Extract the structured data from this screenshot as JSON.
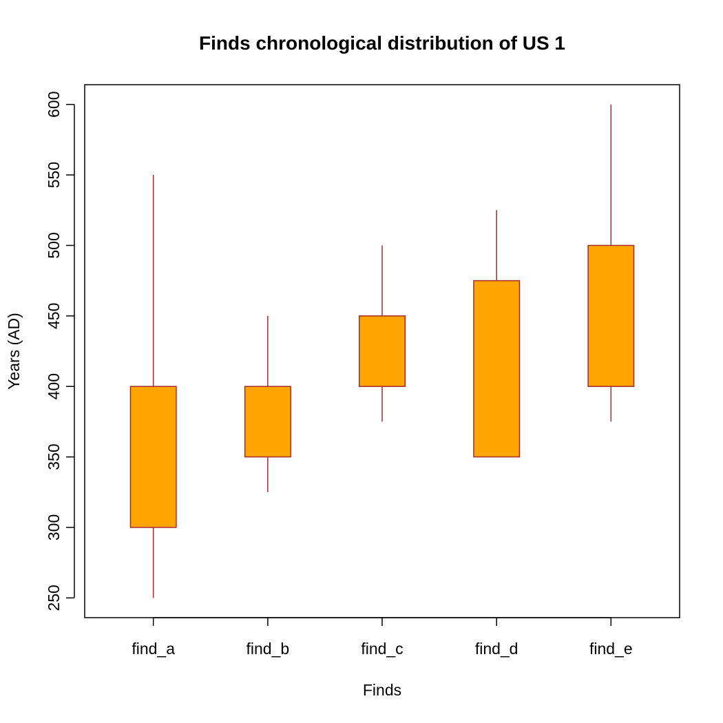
{
  "chart_data": {
    "type": "boxplot",
    "title": "Finds chronological distribution of US 1",
    "xlabel": "Finds",
    "ylabel": "Years (AD)",
    "ylim": [
      236,
      614
    ],
    "yticks": [
      250,
      300,
      350,
      400,
      450,
      500,
      550,
      600
    ],
    "categories": [
      "find_a",
      "find_b",
      "find_c",
      "find_d",
      "find_e"
    ],
    "boxes": [
      {
        "label": "find_a",
        "whisker_low": 250,
        "box_low": 300,
        "box_high": 400,
        "whisker_high": 550
      },
      {
        "label": "find_b",
        "whisker_low": 325,
        "box_low": 350,
        "box_high": 400,
        "whisker_high": 450
      },
      {
        "label": "find_c",
        "whisker_low": 375,
        "box_low": 400,
        "box_high": 450,
        "whisker_high": 500
      },
      {
        "label": "find_d",
        "whisker_low": 350,
        "box_low": 350,
        "box_high": 475,
        "whisker_high": 525
      },
      {
        "label": "find_e",
        "whisker_low": 375,
        "box_low": 400,
        "box_high": 500,
        "whisker_high": 600
      }
    ],
    "colors": {
      "box_fill": "#FFA500",
      "box_stroke": "#A52A2A",
      "axis": "#000000"
    }
  }
}
